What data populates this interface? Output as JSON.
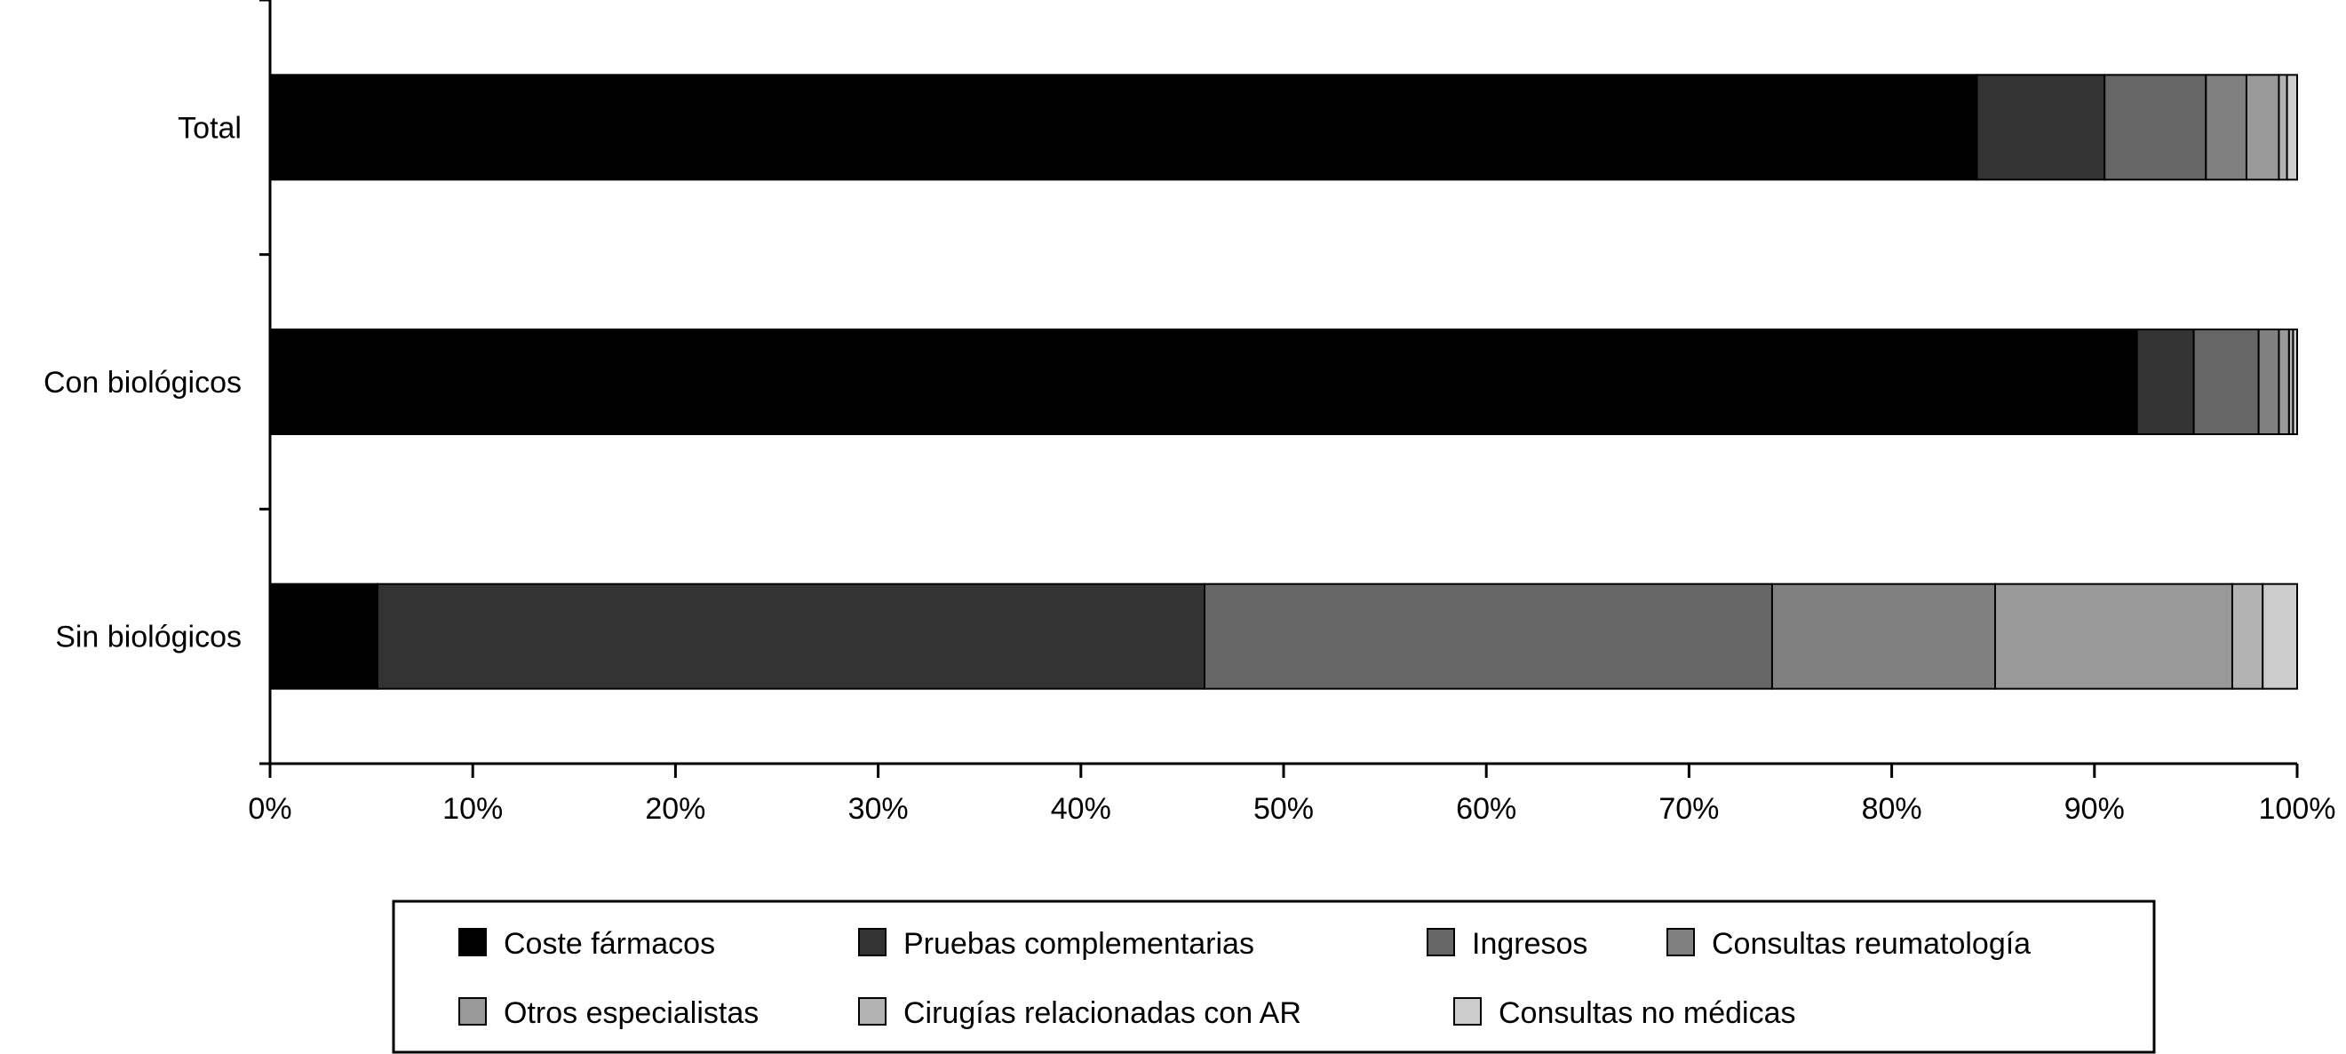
{
  "chart_data": {
    "type": "bar",
    "orientation": "horizontal",
    "stacked": true,
    "title": "",
    "xlabel": "",
    "ylabel": "",
    "xlim": [
      0,
      100
    ],
    "x_ticks": [
      "0%",
      "10%",
      "20%",
      "30%",
      "40%",
      "50%",
      "60%",
      "70%",
      "80%",
      "90%",
      "100%"
    ],
    "categories": [
      "Total",
      "Con biológicos",
      "Sin biológicos"
    ],
    "series": [
      {
        "name": "Coste fármacos",
        "color": "#000000",
        "values": [
          84.2,
          92.1,
          5.3
        ]
      },
      {
        "name": "Pruebas complementarias",
        "color": "#333333",
        "values": [
          6.3,
          2.8,
          40.8
        ]
      },
      {
        "name": "Ingresos",
        "color": "#666666",
        "values": [
          5.0,
          3.2,
          28.0
        ]
      },
      {
        "name": "Consultas reumatología",
        "color": "#808080",
        "values": [
          2.0,
          1.0,
          11.0
        ]
      },
      {
        "name": "Otros especialistas",
        "color": "#999999",
        "values": [
          1.6,
          0.5,
          11.7
        ]
      },
      {
        "name": "Cirugías relacionadas con AR",
        "color": "#b3b3b3",
        "values": [
          0.4,
          0.2,
          1.5
        ]
      },
      {
        "name": "Consultas no médicas",
        "color": "#cccccc",
        "values": [
          0.5,
          0.2,
          1.7
        ]
      }
    ],
    "grid": false,
    "legend": "bottom"
  }
}
